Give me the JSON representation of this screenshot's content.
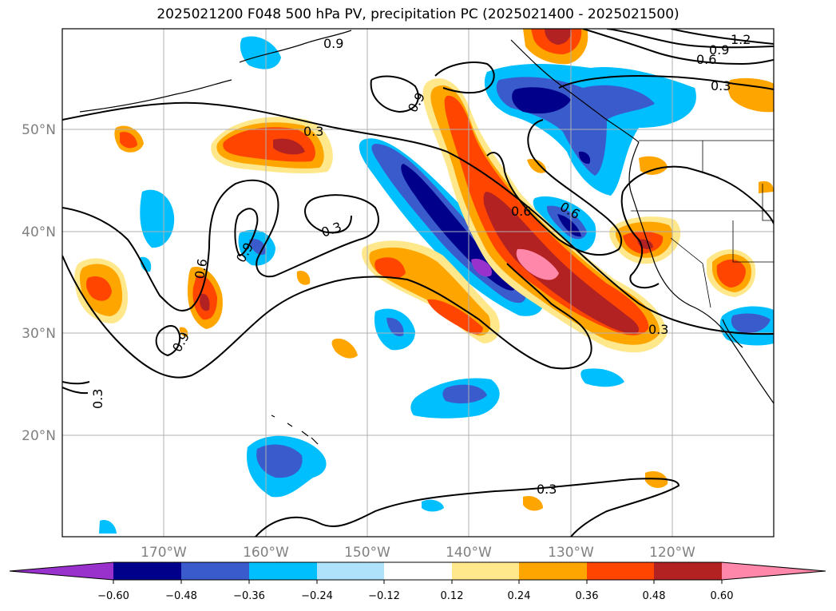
{
  "title": "2025021200 F048 500 hPa PV, precipitation PC (2025021400 - 2025021500)",
  "map": {
    "lon_range": [
      -180,
      -110
    ],
    "lat_range": [
      10,
      60
    ],
    "lat_labels": [
      {
        "lat": 50,
        "text": "50°N"
      },
      {
        "lat": 40,
        "text": "40°N"
      },
      {
        "lat": 30,
        "text": "30°N"
      },
      {
        "lat": 20,
        "text": "20°N"
      }
    ],
    "lon_labels": [
      {
        "lon": -170,
        "text": "170°W"
      },
      {
        "lon": -160,
        "text": "160°W"
      },
      {
        "lon": -150,
        "text": "150°W"
      },
      {
        "lon": -140,
        "text": "140°W"
      },
      {
        "lon": -130,
        "text": "130°W"
      },
      {
        "lon": -120,
        "text": "120°W"
      }
    ],
    "gridlines": true,
    "pv_contour_labels": [
      "0.3",
      "0.6",
      "0.9",
      "1.2"
    ]
  },
  "colorbar": {
    "ticks": [
      "−0.60",
      "−0.48",
      "−0.36",
      "−0.24",
      "−0.12",
      "0.12",
      "0.24",
      "0.36",
      "0.48",
      "0.60"
    ],
    "colors": [
      "#9932CC",
      "#00008B",
      "#3A5BCC",
      "#00BFFF",
      "#ADE2FA",
      "#FFFFFF",
      "#FFE88C",
      "#FFA500",
      "#FF4500",
      "#B22222",
      "#FF88AA"
    ]
  }
}
